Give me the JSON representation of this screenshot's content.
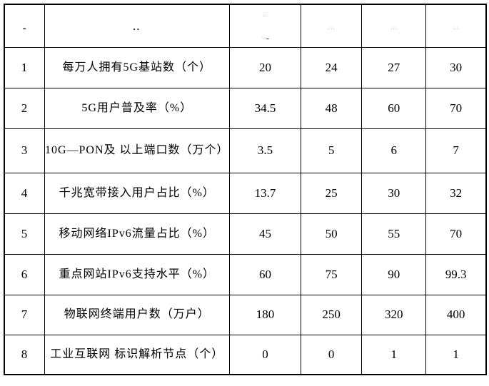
{
  "chart_data": {
    "type": "table",
    "title": "",
    "columns": [
      "序号",
      "指标",
      "col3",
      "col4",
      "col5",
      "col6"
    ],
    "rows": [
      [
        "1",
        "每万人拥有5G基站数（个）",
        "20",
        "24",
        "27",
        "30"
      ],
      [
        "2",
        "5G用户普及率（%）",
        "34.5",
        "48",
        "60",
        "70"
      ],
      [
        "3",
        "10G—PON及 以上端口数（万个）",
        "3.5",
        "5",
        "6",
        "7"
      ],
      [
        "4",
        "千兆宽带接入用户占比（%）",
        "13.7",
        "25",
        "30",
        "32"
      ],
      [
        "5",
        "移动网络IPv6流量占比（%）",
        "45",
        "50",
        "55",
        "70"
      ],
      [
        "6",
        "重点网站IPv6支持水平（%）",
        "60",
        "75",
        "90",
        "99.3"
      ],
      [
        "7",
        "物联网终端用户数（万户）",
        "180",
        "250",
        "320",
        "400"
      ],
      [
        "8",
        "工业互联网 标识解析节点（个）",
        "0",
        "0",
        "1",
        "1"
      ]
    ]
  },
  "table": {
    "header": {
      "no_mark": "-",
      "indicator_mark": "..",
      "col3_line1": "·˙·˙·",
      "col3_line2": "˙···▪▪",
      "col4_mark": "·˙·˙·",
      "col5_mark": "·˙·˙·",
      "col6_mark": "·˙·˙·"
    },
    "rows": [
      {
        "no": "1",
        "name": "每万人拥有5G基站数（个）",
        "v1": "20",
        "v2": "24",
        "v3": "27",
        "v4": "30"
      },
      {
        "no": "2",
        "name": "5G用户普及率（%）",
        "v1": "34.5",
        "v2": "48",
        "v3": "60",
        "v4": "70"
      },
      {
        "no": "3",
        "name": "10G—PON及 以上端口数（万个）",
        "v1": "3.5",
        "v2": "5",
        "v3": "6",
        "v4": "7"
      },
      {
        "no": "4",
        "name": "千兆宽带接入用户占比（%）",
        "v1": "13.7",
        "v2": "25",
        "v3": "30",
        "v4": "32"
      },
      {
        "no": "5",
        "name": "移动网络IPv6流量占比（%）",
        "v1": "45",
        "v2": "50",
        "v3": "55",
        "v4": "70"
      },
      {
        "no": "6",
        "name": "重点网站IPv6支持水平（%）",
        "v1": "60",
        "v2": "75",
        "v3": "90",
        "v4": "99.3"
      },
      {
        "no": "7",
        "name": "物联网终端用户数（万户）",
        "v1": "180",
        "v2": "250",
        "v3": "320",
        "v4": "400"
      },
      {
        "no": "8",
        "name": "工业互联网 标识解析节点（个）",
        "v1": "0",
        "v2": "0",
        "v3": "1",
        "v4": "1"
      }
    ]
  }
}
